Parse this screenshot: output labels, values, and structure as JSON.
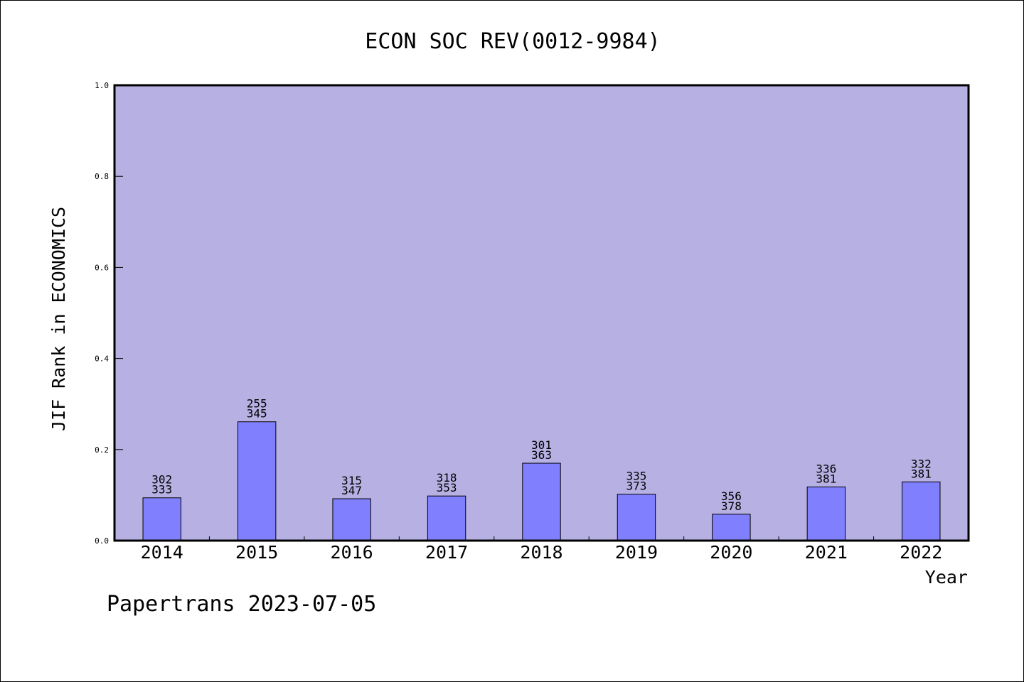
{
  "chart_data": {
    "type": "bar",
    "title": "ECON SOC REV(0012-9984)",
    "xlabel": "Year",
    "ylabel": "JIF Rank in ECONOMICS",
    "ylim": [
      0,
      1.0
    ],
    "yticks": [
      "0.0",
      "0.2",
      "0.4",
      "0.6",
      "0.8",
      "1.0"
    ],
    "categories": [
      "2014",
      "2015",
      "2016",
      "2017",
      "2018",
      "2019",
      "2020",
      "2021",
      "2022"
    ],
    "values": [
      0.094,
      0.261,
      0.092,
      0.098,
      0.17,
      0.102,
      0.058,
      0.118,
      0.129
    ],
    "labels": [
      {
        "rank": "302",
        "total": "333"
      },
      {
        "rank": "255",
        "total": "345"
      },
      {
        "rank": "315",
        "total": "347"
      },
      {
        "rank": "318",
        "total": "353"
      },
      {
        "rank": "301",
        "total": "363"
      },
      {
        "rank": "335",
        "total": "373"
      },
      {
        "rank": "356",
        "total": "378"
      },
      {
        "rank": "336",
        "total": "381"
      },
      {
        "rank": "332",
        "total": "381"
      }
    ],
    "grid": false,
    "colors": {
      "plot_background": "#b6b0e3",
      "bar_fill": "#8080ff",
      "bar_stroke": "#000000"
    }
  },
  "footer": {
    "text": "Papertrans 2023-07-05"
  }
}
